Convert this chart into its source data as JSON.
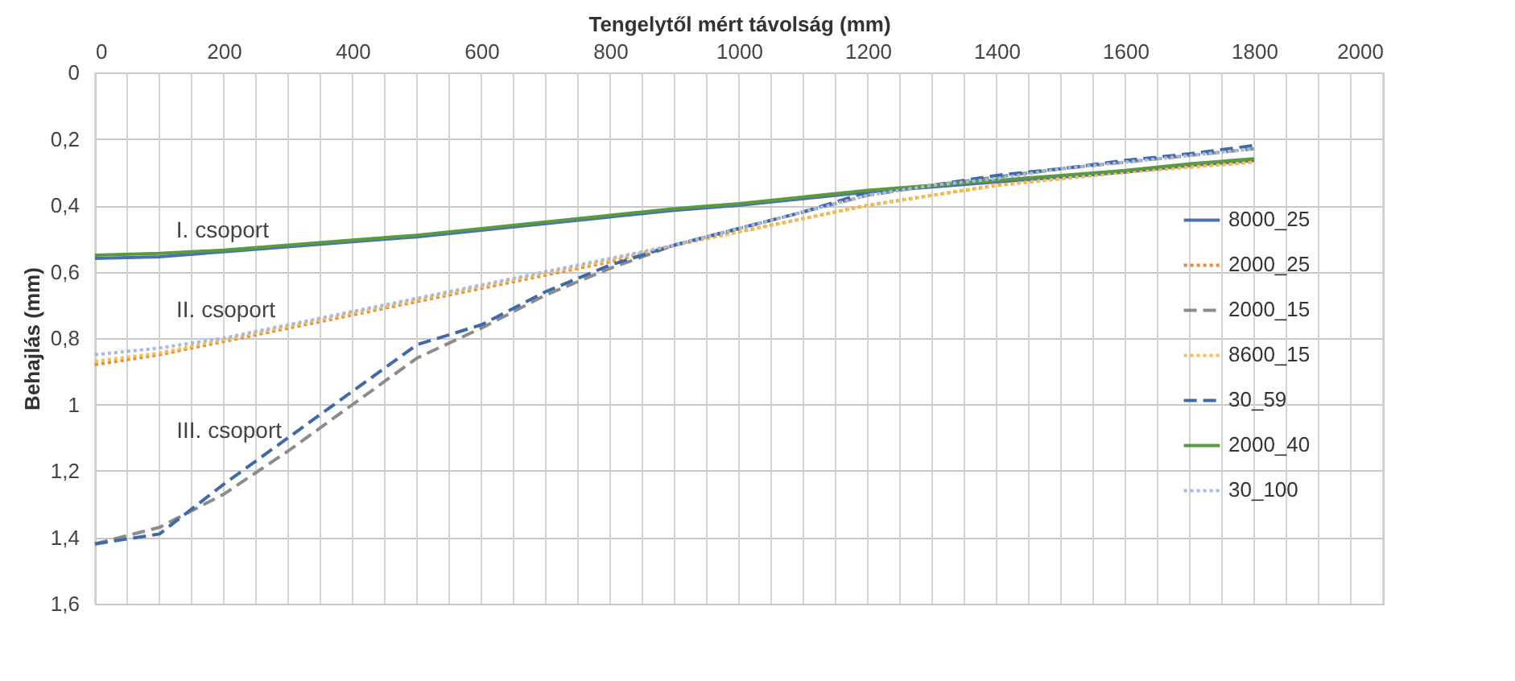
{
  "chart_data": {
    "type": "line",
    "xlabel": "Tengelytől mért távolság (mm)",
    "ylabel": "Behajlás (mm)",
    "x": [
      0,
      100,
      200,
      300,
      400,
      500,
      600,
      700,
      800,
      900,
      1000,
      1100,
      1200,
      1300,
      1400,
      1500,
      1600,
      1700,
      1800
    ],
    "xlim": [
      0,
      2000
    ],
    "xticks": [
      0,
      {
        "value": 50,
        "label": null
      },
      {
        "value": 100,
        "label": null
      },
      {
        "value": 150,
        "label": null
      },
      200,
      {
        "value": 250,
        "label": null
      },
      {
        "value": 300,
        "label": null
      },
      {
        "value": 350,
        "label": null
      },
      400,
      {
        "value": 450,
        "label": null
      },
      {
        "value": 500,
        "label": null
      },
      {
        "value": 550,
        "label": null
      },
      600,
      {
        "value": 650,
        "label": null
      },
      {
        "value": 700,
        "label": null
      },
      {
        "value": 750,
        "label": null
      },
      800,
      {
        "value": 850,
        "label": null
      },
      {
        "value": 900,
        "label": null
      },
      {
        "value": 950,
        "label": null
      },
      1000,
      {
        "value": 1050,
        "label": null
      },
      {
        "value": 1100,
        "label": null
      },
      {
        "value": 1150,
        "label": null
      },
      1200,
      {
        "value": 1250,
        "label": null
      },
      {
        "value": 1300,
        "label": null
      },
      {
        "value": 1350,
        "label": null
      },
      1400,
      {
        "value": 1450,
        "label": null
      },
      {
        "value": 1500,
        "label": null
      },
      {
        "value": 1550,
        "label": null
      },
      1600,
      {
        "value": 1650,
        "label": null
      },
      {
        "value": 1700,
        "label": null
      },
      {
        "value": 1750,
        "label": null
      },
      1800,
      {
        "value": 1850,
        "label": null
      },
      {
        "value": 1900,
        "label": null
      },
      {
        "value": 1950,
        "label": null
      },
      2000
    ],
    "ylim": [
      1.6,
      0
    ],
    "yticks": [
      0,
      {
        "value": 0.2,
        "label": "0,2"
      },
      {
        "value": 0.4,
        "label": "0,4"
      },
      {
        "value": 0.6,
        "label": "0,6"
      },
      {
        "value": 0.8,
        "label": "0,8"
      },
      1,
      {
        "value": 1.2,
        "label": "1,2"
      },
      {
        "value": 1.4,
        "label": "1,4"
      },
      {
        "value": 1.6,
        "label": "1,6"
      }
    ],
    "grid": true,
    "legend": "right",
    "marker": "none",
    "series": [
      {
        "name": "8000_25",
        "color": "#4a72b0",
        "line_style": "solid",
        "values": [
          0.56,
          0.555,
          0.54,
          0.525,
          0.51,
          0.495,
          0.475,
          0.455,
          0.435,
          0.415,
          0.4,
          0.38,
          0.36,
          0.345,
          0.33,
          0.315,
          0.3,
          0.28,
          0.265
        ]
      },
      {
        "name": "2000_25",
        "color": "#e8883a",
        "line_style": "dotted",
        "values": [
          0.88,
          0.85,
          0.81,
          0.77,
          0.73,
          0.69,
          0.65,
          0.61,
          0.57,
          0.52,
          0.48,
          0.44,
          0.4,
          0.37,
          0.34,
          0.32,
          0.3,
          0.285,
          0.27
        ]
      },
      {
        "name": "2000_15",
        "color": "#8c8c8c",
        "line_style": "dashed",
        "values": [
          1.42,
          1.37,
          1.27,
          1.14,
          1.0,
          0.86,
          0.77,
          0.67,
          0.59,
          0.52,
          0.47,
          0.42,
          0.37,
          0.34,
          0.315,
          0.29,
          0.27,
          0.25,
          0.23
        ]
      },
      {
        "name": "8600_15",
        "color": "#f2c14e",
        "line_style": "dotted",
        "values": [
          0.87,
          0.845,
          0.805,
          0.765,
          0.725,
          0.685,
          0.645,
          0.605,
          0.565,
          0.52,
          0.48,
          0.44,
          0.4,
          0.37,
          0.34,
          0.32,
          0.3,
          0.285,
          0.27
        ]
      },
      {
        "name": "30_59",
        "color": "#3e6aa8",
        "line_style": "dashed",
        "values": [
          1.42,
          1.39,
          1.24,
          1.1,
          0.96,
          0.82,
          0.76,
          0.66,
          0.58,
          0.52,
          0.47,
          0.42,
          0.36,
          0.34,
          0.31,
          0.29,
          0.265,
          0.245,
          0.22
        ]
      },
      {
        "name": "2000_40",
        "color": "#5a9a40",
        "line_style": "solid",
        "values": [
          0.55,
          0.545,
          0.535,
          0.52,
          0.505,
          0.49,
          0.47,
          0.45,
          0.43,
          0.41,
          0.395,
          0.375,
          0.355,
          0.34,
          0.325,
          0.31,
          0.295,
          0.275,
          0.26
        ]
      },
      {
        "name": "30_100",
        "color": "#a8b8e0",
        "line_style": "dotted",
        "values": [
          0.85,
          0.83,
          0.8,
          0.76,
          0.72,
          0.68,
          0.64,
          0.6,
          0.56,
          0.52,
          0.47,
          0.42,
          0.37,
          0.34,
          0.32,
          0.29,
          0.27,
          0.25,
          0.23
        ]
      }
    ],
    "annotations": [
      {
        "text": "I. csoport",
        "x": 290,
        "y": 0.525
      },
      {
        "text": "II. csoport",
        "x": 300,
        "y": 0.765
      },
      {
        "text": "III. csoport",
        "x": 310,
        "y": 1.13
      }
    ]
  }
}
